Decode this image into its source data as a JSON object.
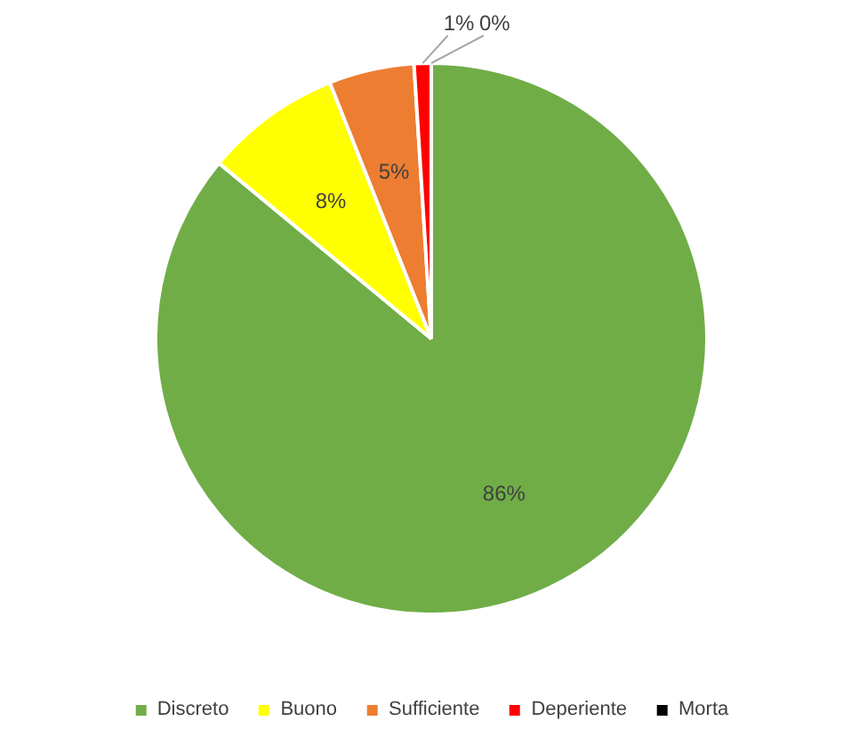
{
  "chart_data": {
    "type": "pie",
    "categories": [
      "Discreto",
      "Buono",
      "Sufficiente",
      "Deperiente",
      "Morta"
    ],
    "values": [
      86,
      8,
      5,
      1,
      0
    ],
    "colors": [
      "#70ad47",
      "#ffff00",
      "#ed7d31",
      "#ff0000",
      "#000000"
    ],
    "value_labels": [
      "86%",
      "8%",
      "5%",
      "1%",
      "0%"
    ],
    "legend": "bottom"
  }
}
